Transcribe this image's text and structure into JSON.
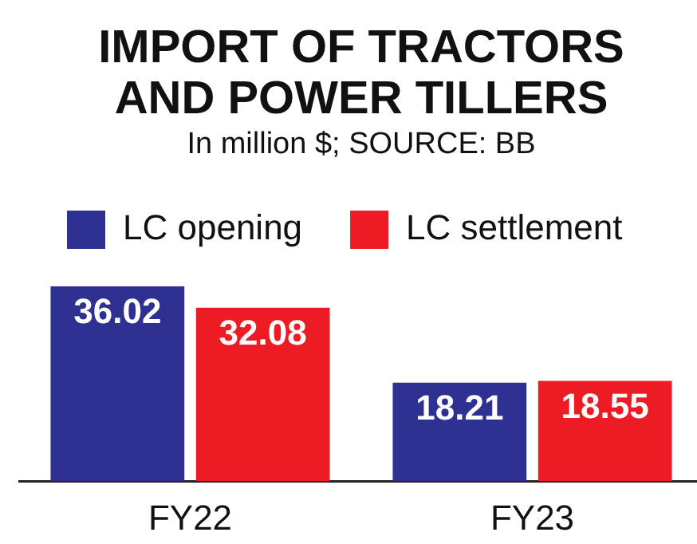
{
  "chart_data": {
    "type": "bar",
    "title": "IMPORT OF TRACTORS AND POWER TILLERS",
    "subtitle": "In million $; SOURCE: BB",
    "categories": [
      "FY22",
      "FY23"
    ],
    "series": [
      {
        "name": "LC opening",
        "color": "#2e3192",
        "values": [
          36.02,
          18.21
        ]
      },
      {
        "name": "LC settlement",
        "color": "#ed1c24",
        "values": [
          32.08,
          18.55
        ]
      }
    ],
    "data_labels": true,
    "grid": false,
    "legend": "top left"
  }
}
